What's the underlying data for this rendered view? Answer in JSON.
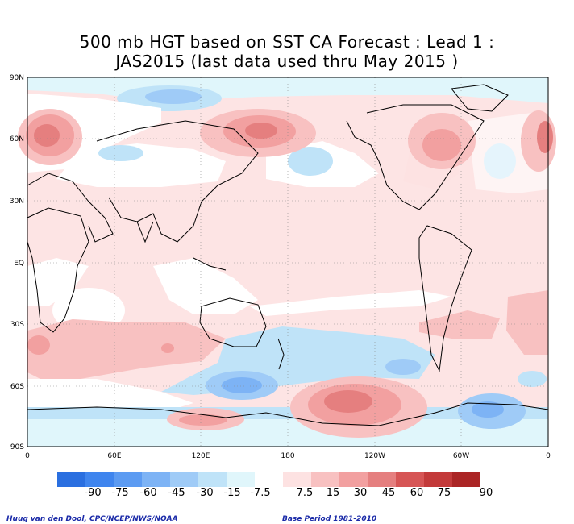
{
  "title": {
    "line1": "500 mb HGT based on SST CA Forecast : Lead 1 :",
    "line2": "JAS2015 (last data used thru May 2015 )"
  },
  "axes": {
    "lat_labels": [
      "90N",
      "60N",
      "30N",
      "EQ",
      "30S",
      "60S",
      "90S"
    ],
    "lon_labels": [
      "0",
      "60E",
      "120E",
      "180",
      "120W",
      "60W",
      "0"
    ]
  },
  "colorbar": {
    "labels": [
      "-90",
      "-75",
      "-60",
      "-45",
      "-30",
      "-15",
      "-7.5",
      "7.5",
      "15",
      "30",
      "45",
      "60",
      "75",
      "90"
    ],
    "colors": [
      "#2a6fe0",
      "#3f85ee",
      "#5c9bf2",
      "#7db3f5",
      "#9fcbf7",
      "#bfe3f8",
      "#e0f6fb",
      "#ffffff",
      "#fde2e2",
      "#f8c1c1",
      "#f2a0a0",
      "#e57f7f",
      "#d65555",
      "#c33a3a",
      "#ab2525"
    ]
  },
  "footer": {
    "credit": "Huug van den Dool, CPC/NCEP/NWS/NOAA",
    "base_period": "Base Period 1981-2010"
  }
}
